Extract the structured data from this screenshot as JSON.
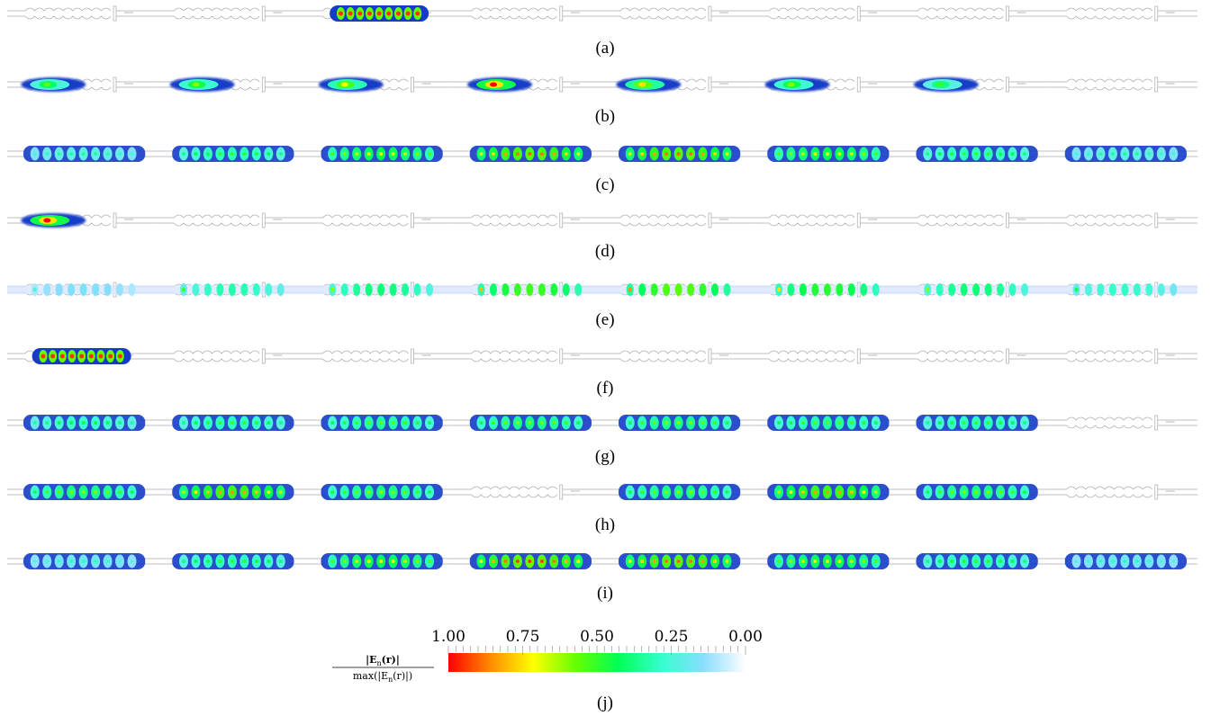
{
  "panels": [
    {
      "label": "(a)",
      "blobs": [
        {
          "cell": 2,
          "i": 0.95,
          "kind": "wide"
        }
      ]
    },
    {
      "label": "(b)",
      "blobs": [
        {
          "cell": 0,
          "i": 0.55,
          "kind": "spot"
        },
        {
          "cell": 1,
          "i": 0.6,
          "kind": "spot"
        },
        {
          "cell": 2,
          "i": 0.7,
          "kind": "spot"
        },
        {
          "cell": 3,
          "i": 1.0,
          "kind": "spot"
        },
        {
          "cell": 4,
          "i": 0.75,
          "kind": "spot"
        },
        {
          "cell": 5,
          "i": 0.6,
          "kind": "spot"
        },
        {
          "cell": 6,
          "i": 0.5,
          "kind": "spot"
        }
      ]
    },
    {
      "label": "(c)",
      "blobs": [
        {
          "cell": 0,
          "i": 0.35,
          "kind": "chain"
        },
        {
          "cell": 1,
          "i": 0.5,
          "kind": "chain"
        },
        {
          "cell": 2,
          "i": 0.7,
          "kind": "chain"
        },
        {
          "cell": 3,
          "i": 0.9,
          "kind": "chain"
        },
        {
          "cell": 4,
          "i": 0.9,
          "kind": "chain"
        },
        {
          "cell": 5,
          "i": 0.7,
          "kind": "chain"
        },
        {
          "cell": 6,
          "i": 0.5,
          "kind": "chain"
        },
        {
          "cell": 7,
          "i": 0.35,
          "kind": "chain"
        }
      ]
    },
    {
      "label": "(d)",
      "blobs": [
        {
          "cell": 0,
          "i": 1.0,
          "kind": "spot"
        }
      ]
    },
    {
      "label": "(e)",
      "blobs": [
        {
          "cell": 0,
          "i": 0.25,
          "kind": "faint"
        },
        {
          "cell": 1,
          "i": 0.5,
          "kind": "faint"
        },
        {
          "cell": 2,
          "i": 0.6,
          "kind": "faint"
        },
        {
          "cell": 3,
          "i": 0.8,
          "kind": "faint"
        },
        {
          "cell": 4,
          "i": 0.85,
          "kind": "faint"
        },
        {
          "cell": 5,
          "i": 0.75,
          "kind": "faint"
        },
        {
          "cell": 6,
          "i": 0.6,
          "kind": "faint"
        },
        {
          "cell": 7,
          "i": 0.45,
          "kind": "faint"
        }
      ]
    },
    {
      "label": "(f)",
      "blobs": [
        {
          "cell": 0,
          "i": 0.95,
          "kind": "wide"
        }
      ]
    },
    {
      "label": "(g)",
      "blobs": [
        {
          "cell": 0,
          "i": 0.45,
          "kind": "chain"
        },
        {
          "cell": 1,
          "i": 0.5,
          "kind": "chain"
        },
        {
          "cell": 2,
          "i": 0.55,
          "kind": "chain"
        },
        {
          "cell": 3,
          "i": 0.6,
          "kind": "chain"
        },
        {
          "cell": 4,
          "i": 0.6,
          "kind": "chain"
        },
        {
          "cell": 5,
          "i": 0.55,
          "kind": "chain"
        },
        {
          "cell": 6,
          "i": 0.5,
          "kind": "chain"
        }
      ]
    },
    {
      "label": "(h)",
      "blobs": [
        {
          "cell": 0,
          "i": 0.6,
          "kind": "chain"
        },
        {
          "cell": 1,
          "i": 0.85,
          "kind": "chain"
        },
        {
          "cell": 2,
          "i": 0.6,
          "kind": "chain"
        },
        {
          "cell": 4,
          "i": 0.6,
          "kind": "chain"
        },
        {
          "cell": 5,
          "i": 0.85,
          "kind": "chain"
        },
        {
          "cell": 6,
          "i": 0.6,
          "kind": "chain"
        }
      ]
    },
    {
      "label": "(i)",
      "blobs": [
        {
          "cell": 0,
          "i": 0.3,
          "kind": "chain"
        },
        {
          "cell": 1,
          "i": 0.5,
          "kind": "chain"
        },
        {
          "cell": 2,
          "i": 0.7,
          "kind": "chain"
        },
        {
          "cell": 3,
          "i": 0.95,
          "kind": "chain"
        },
        {
          "cell": 4,
          "i": 0.9,
          "kind": "chain"
        },
        {
          "cell": 5,
          "i": 0.7,
          "kind": "chain"
        },
        {
          "cell": 6,
          "i": 0.5,
          "kind": "chain"
        },
        {
          "cell": 7,
          "i": 0.3,
          "kind": "chain"
        }
      ]
    }
  ],
  "colorbar": {
    "ticks": [
      "1.00",
      "0.75",
      "0.50",
      "0.25",
      "0.00"
    ],
    "numerator": "|E",
    "numerator_sub": "n",
    "numerator_tail": "(r)|",
    "denominator": "max(|E",
    "denominator_sub": "n",
    "denominator_tail": "(r)|)",
    "label": "(j)",
    "stops": [
      "#ff0000",
      "#ff8c00",
      "#ffff00",
      "#66ff00",
      "#00ff55",
      "#33ffcc",
      "#88ddff",
      "#ffffff"
    ]
  }
}
